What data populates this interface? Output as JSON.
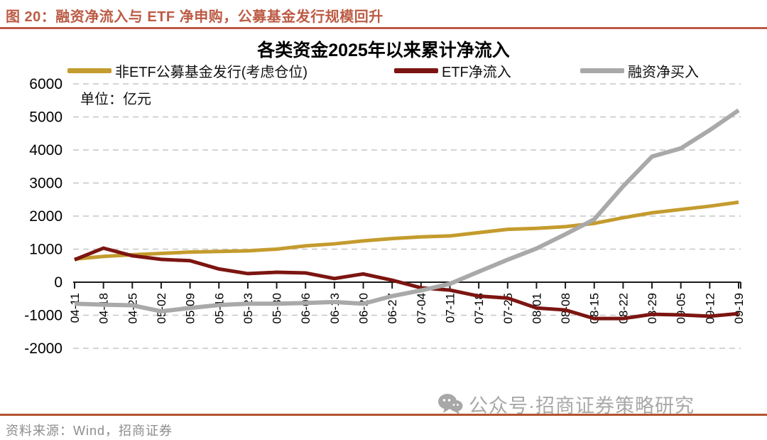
{
  "figure": {
    "header": "图 20：融资净流入与 ETF 净申购，公募基金发行规模回升",
    "source": "资料来源：Wind，招商证券",
    "watermark": "公众号·招商证券策略研究"
  },
  "chart_data": {
    "type": "line",
    "title": "各类资金2025年以来累计净流入",
    "unit_label": "单位：亿元",
    "ylabel": "",
    "xlabel": "",
    "ylim": [
      -2000,
      6000
    ],
    "ytick_step": 1000,
    "grid": "horizontal-dashed",
    "legend_position": "top",
    "categories": [
      "04-11",
      "04-18",
      "04-25",
      "05-02",
      "05-09",
      "05-16",
      "05-23",
      "05-30",
      "06-06",
      "06-13",
      "06-20",
      "06-27",
      "07-04",
      "07-11",
      "07-18",
      "07-25",
      "08-01",
      "08-08",
      "08-15",
      "08-22",
      "08-29",
      "09-05",
      "09-12",
      "09-19"
    ],
    "series": [
      {
        "name": "非ETF公募基金发行(考虑仓位)",
        "color": "#c49b2e",
        "width": 5,
        "values": [
          700,
          780,
          830,
          870,
          910,
          930,
          950,
          1000,
          1100,
          1160,
          1250,
          1320,
          1370,
          1400,
          1500,
          1600,
          1630,
          1680,
          1780,
          1950,
          2100,
          2200,
          2300,
          2420
        ]
      },
      {
        "name": "ETF净流入",
        "color": "#7c1511",
        "width": 5,
        "values": [
          680,
          1030,
          800,
          690,
          650,
          400,
          260,
          300,
          280,
          110,
          250,
          60,
          -170,
          -240,
          -420,
          -480,
          -780,
          -840,
          -1100,
          -1100,
          -970,
          -990,
          -1030,
          -950
        ]
      },
      {
        "name": "融资净买入",
        "color": "#a9a9a9",
        "width": 6,
        "values": [
          -650,
          -680,
          -700,
          -880,
          -780,
          -690,
          -650,
          -650,
          -630,
          -600,
          -650,
          -420,
          -250,
          -50,
          320,
          680,
          1020,
          1450,
          1900,
          2900,
          3800,
          4050,
          4600,
          5200
        ]
      }
    ]
  }
}
